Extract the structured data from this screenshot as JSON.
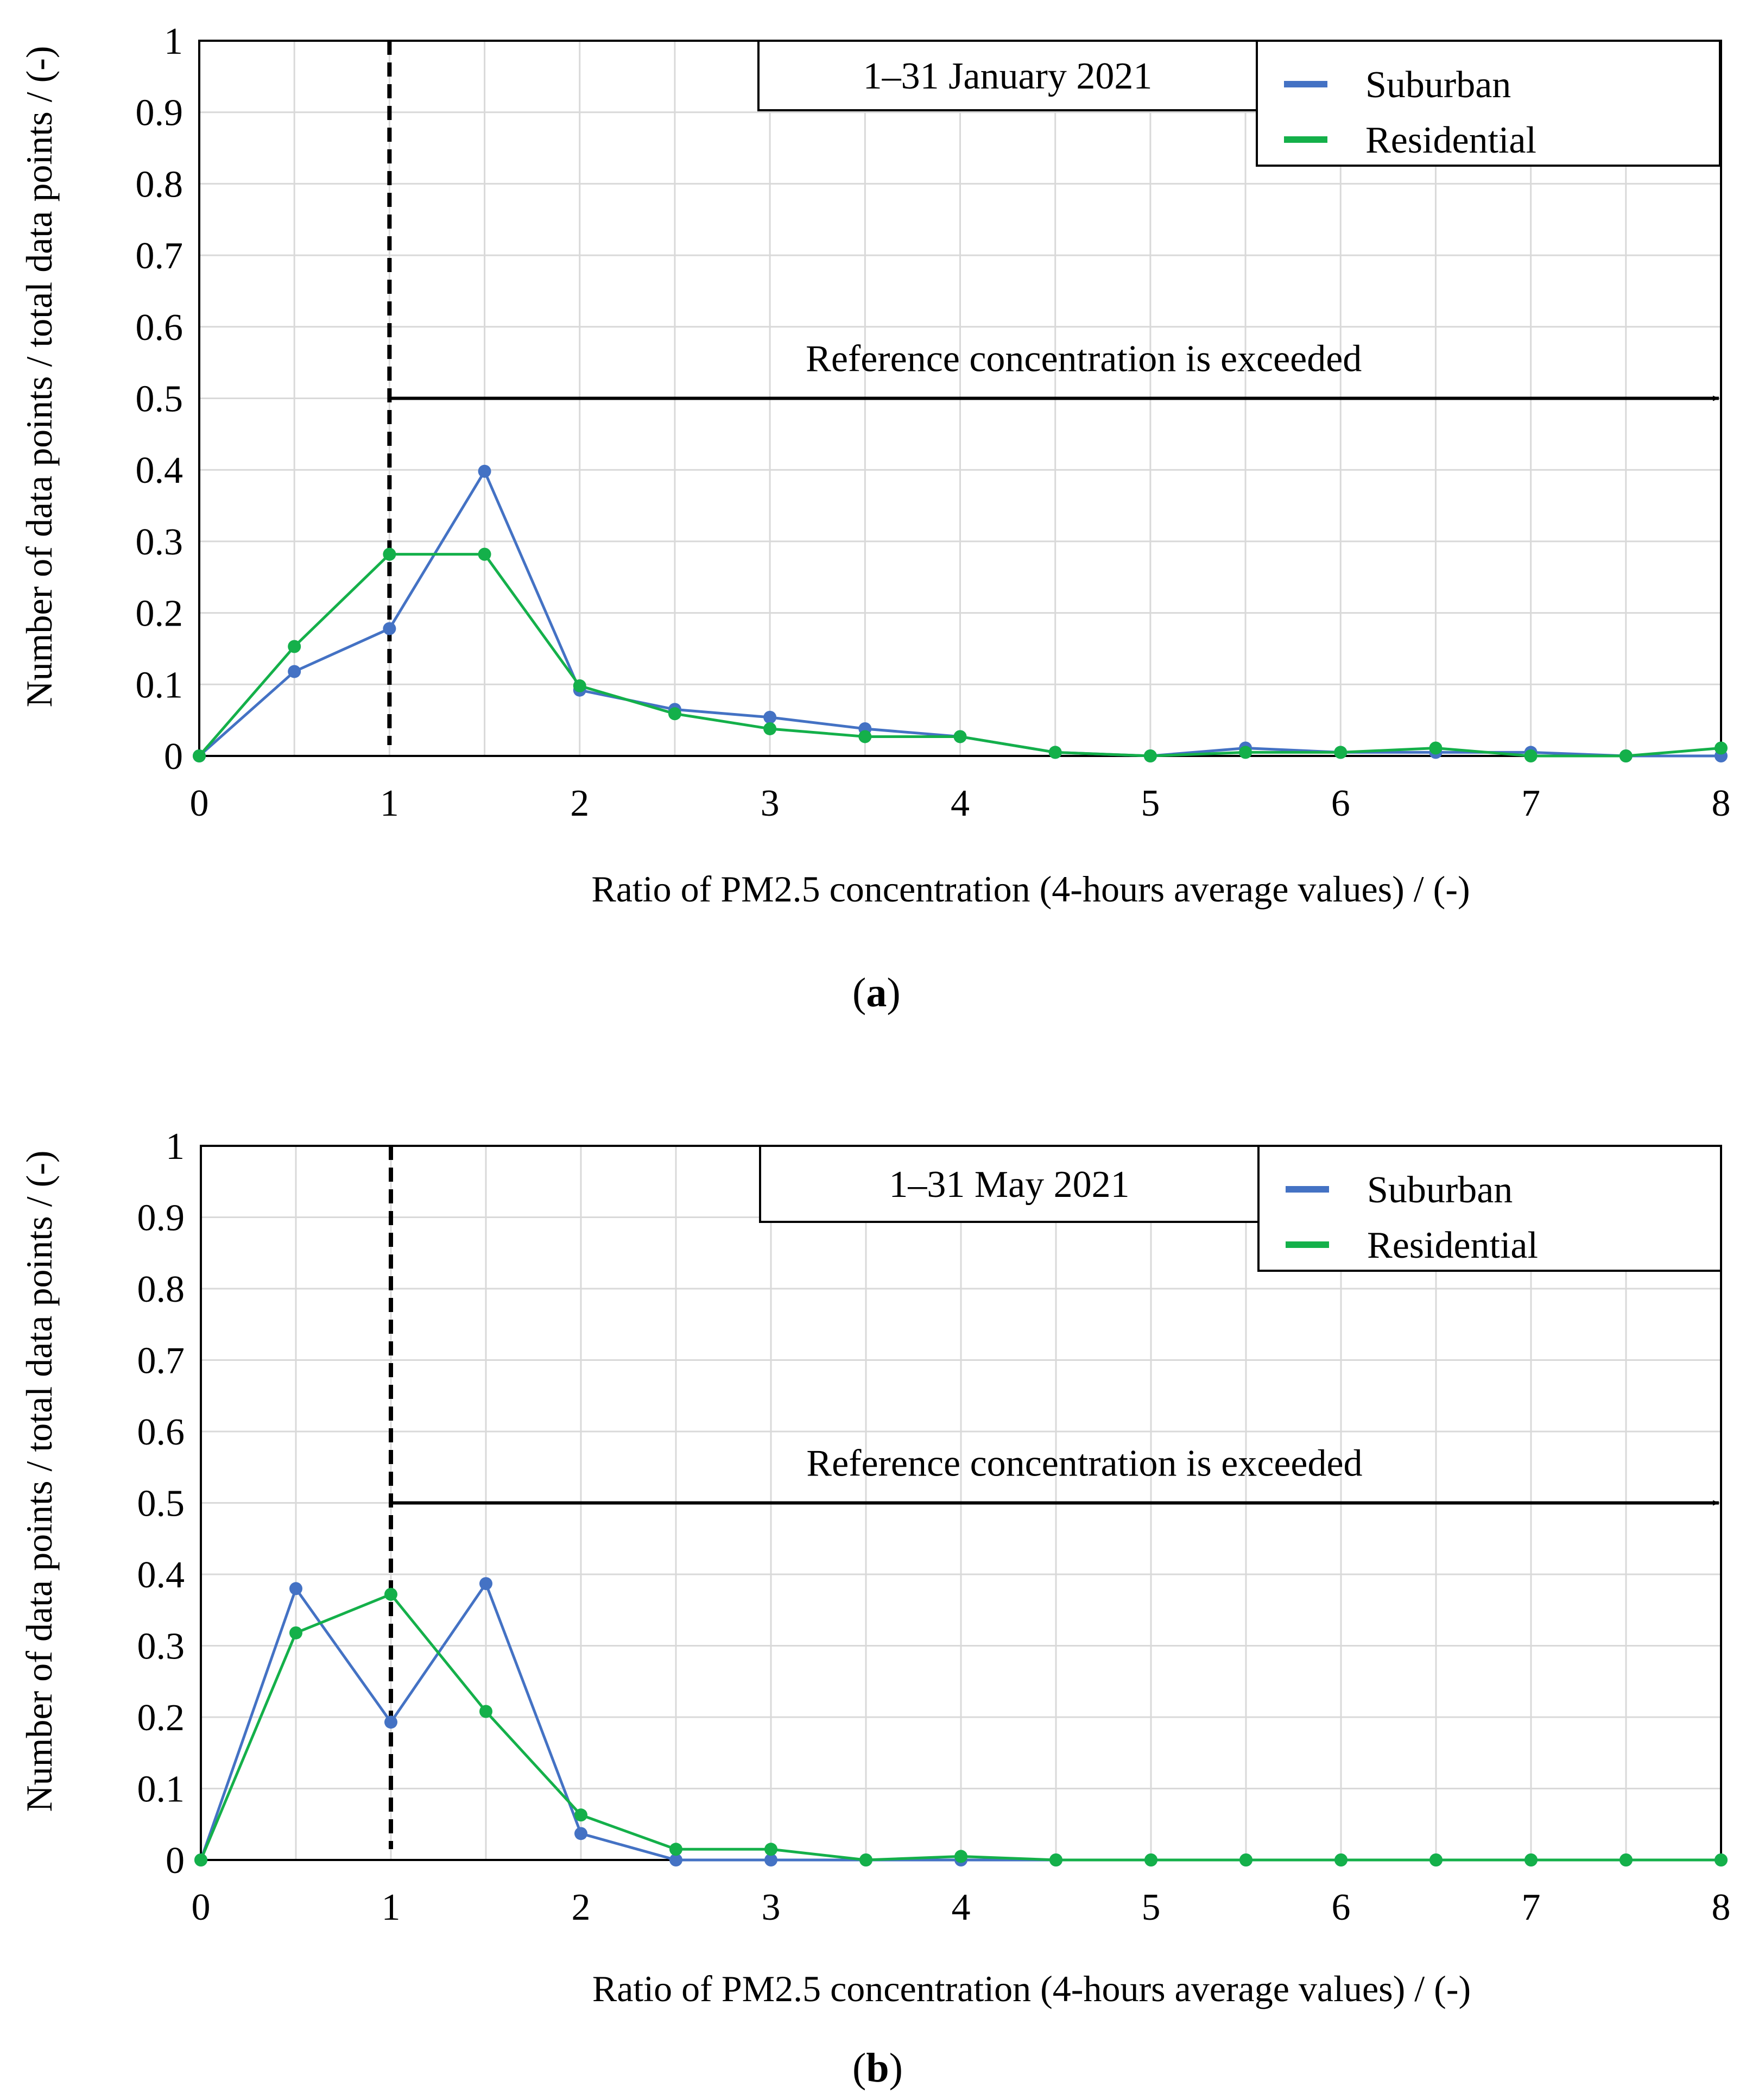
{
  "figure": {
    "panel_a_label": "a",
    "panel_b_label": "b",
    "colors": {
      "suburban": "#4472C4",
      "residential": "#14B04A",
      "grid": "#D9D9D9",
      "axis": "#000000"
    }
  },
  "chart_data": [
    {
      "type": "line",
      "panel": "a",
      "title": "1–31 January 2021",
      "xlabel": "Ratio of PM2.5 concentration (4-hours average values) / (-)",
      "ylabel": "Number of data points / total data points / (-)",
      "xlim": [
        0,
        8
      ],
      "ylim": [
        0,
        1
      ],
      "x_ticks": [
        0,
        1,
        2,
        3,
        4,
        5,
        6,
        7,
        8
      ],
      "y_ticks": [
        0,
        0.1,
        0.2,
        0.3,
        0.4,
        0.5,
        0.6,
        0.7,
        0.8,
        0.9,
        1
      ],
      "x_tick_labels": [
        "0",
        "1",
        "2",
        "3",
        "4",
        "5",
        "6",
        "7",
        "8"
      ],
      "y_tick_labels": [
        "0",
        "0.1",
        "0.2",
        "0.3",
        "0.4",
        "0.5",
        "0.6",
        "0.7",
        "0.8",
        "0.9",
        "1"
      ],
      "grid": true,
      "legend": "top-right",
      "reference_line_x": 1,
      "annotation": {
        "text": "Reference concentration is exceeded",
        "arrow_from_x": 1,
        "arrow_to_x": 8,
        "arrow_y": 0.5
      },
      "x": [
        0,
        0.5,
        1,
        1.5,
        2,
        2.5,
        3,
        3.5,
        4,
        4.5,
        5,
        5.5,
        6,
        6.5,
        7,
        7.5,
        8
      ],
      "series": [
        {
          "name": "Suburban",
          "color": "#4472C4",
          "values": [
            0,
            0.118,
            0.178,
            0.398,
            0.092,
            0.065,
            0.054,
            0.038,
            0.027,
            0.005,
            0,
            0.011,
            0.005,
            0.005,
            0.005,
            0,
            0
          ]
        },
        {
          "name": "Residential",
          "color": "#14B04A",
          "values": [
            0,
            0.153,
            0.282,
            0.282,
            0.098,
            0.059,
            0.038,
            0.027,
            0.027,
            0.005,
            0,
            0.005,
            0.005,
            0.011,
            0,
            0,
            0.011
          ]
        }
      ]
    },
    {
      "type": "line",
      "panel": "b",
      "title": "1–31 May 2021",
      "xlabel": "Ratio of PM2.5 concentration (4-hours average values) / (-)",
      "ylabel": "Number of data points / total data points / (-)",
      "xlim": [
        0,
        8
      ],
      "ylim": [
        0,
        1
      ],
      "x_ticks": [
        0,
        1,
        2,
        3,
        4,
        5,
        6,
        7,
        8
      ],
      "y_ticks": [
        0,
        0.1,
        0.2,
        0.3,
        0.4,
        0.5,
        0.6,
        0.7,
        0.8,
        0.9,
        1
      ],
      "x_tick_labels": [
        "0",
        "1",
        "2",
        "3",
        "4",
        "5",
        "6",
        "7",
        "8"
      ],
      "y_tick_labels": [
        "0",
        "0.1",
        "0.2",
        "0.3",
        "0.4",
        "0.5",
        "0.6",
        "0.7",
        "0.8",
        "0.9",
        "1"
      ],
      "grid": true,
      "legend": "top-right",
      "reference_line_x": 1,
      "annotation": {
        "text": "Reference concentration is exceeded",
        "arrow_from_x": 1,
        "arrow_to_x": 8,
        "arrow_y": 0.5
      },
      "x": [
        0,
        0.5,
        1,
        1.5,
        2,
        2.5,
        3,
        3.5,
        4,
        4.5,
        5,
        5.5,
        6,
        6.5,
        7,
        7.5,
        8
      ],
      "series": [
        {
          "name": "Suburban",
          "color": "#4472C4",
          "values": [
            0,
            0.38,
            0.193,
            0.387,
            0.037,
            0,
            0,
            0,
            0,
            0,
            0,
            0,
            0,
            0,
            0,
            0,
            0
          ]
        },
        {
          "name": "Residential",
          "color": "#14B04A",
          "values": [
            0,
            0.318,
            0.372,
            0.208,
            0.063,
            0.015,
            0.015,
            0,
            0.005,
            0,
            0,
            0,
            0,
            0,
            0,
            0,
            0
          ]
        }
      ]
    }
  ]
}
